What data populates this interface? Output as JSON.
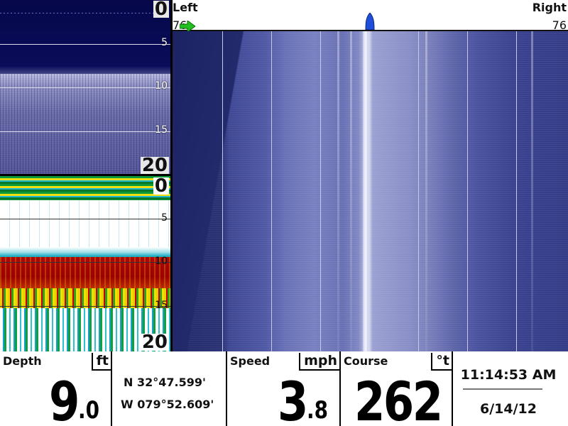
{
  "down_imaging": {
    "depth_top": "0",
    "depth_marks": [
      "5",
      "10",
      "15"
    ],
    "depth_bottom": "20"
  },
  "sonar_2d": {
    "depth_top": "0",
    "depth_marks": [
      "5",
      "10",
      "15"
    ],
    "depth_bottom": "20"
  },
  "side_imaging": {
    "left_title": "Left",
    "right_title": "Right",
    "left_range": "76",
    "right_range": "76",
    "icons": {
      "pan_arrow": "green-arrow-icon",
      "boat": "boat-icon"
    },
    "colors": {
      "arrow": "#21c020",
      "boat": "#1f4fd8"
    }
  },
  "data_bar": {
    "depth": {
      "label": "Depth",
      "unit": "ft",
      "value_int": "9",
      "value_dec": ".0"
    },
    "position": {
      "lat": "N 32°47.599'",
      "lon": "W 079°52.609'"
    },
    "speed": {
      "label": "Speed",
      "unit": "mph",
      "value_int": "3",
      "value_dec": ".8"
    },
    "course": {
      "label": "Course",
      "unit": "°t",
      "value": "262"
    },
    "time": "11:14:53 AM",
    "date": "6/14/12"
  }
}
